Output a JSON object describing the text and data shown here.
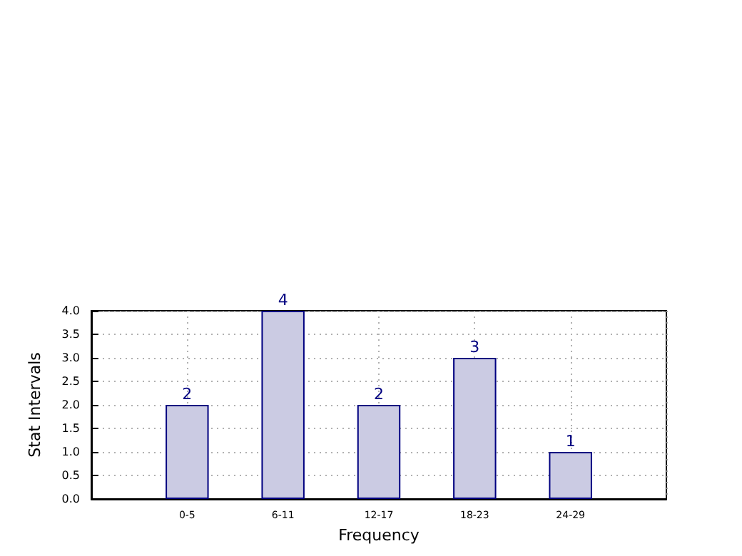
{
  "chart_data": {
    "type": "bar",
    "xlabel": "Frequency",
    "ylabel": "Stat Intervals",
    "categories": [
      "0-5",
      "6-11",
      "12-17",
      "18-23",
      "24-29"
    ],
    "values": [
      2,
      4,
      2,
      3,
      1
    ],
    "color": "#cbcbe3",
    "ylim": [
      0,
      4
    ],
    "yticks": [
      {
        "value": 0,
        "label": "0.0"
      },
      {
        "value": 0.5,
        "label": "0.5"
      },
      {
        "value": 1,
        "label": "1.0"
      },
      {
        "value": 1.5,
        "label": "1.5"
      },
      {
        "value": 2,
        "label": "2.0"
      },
      {
        "value": 2.5,
        "label": "2.5"
      },
      {
        "value": 3,
        "label": "3.0"
      },
      {
        "value": 3.5,
        "label": "3.5"
      },
      {
        "value": 4,
        "label": "4.0"
      }
    ],
    "grid": true,
    "data_labels": true
  }
}
